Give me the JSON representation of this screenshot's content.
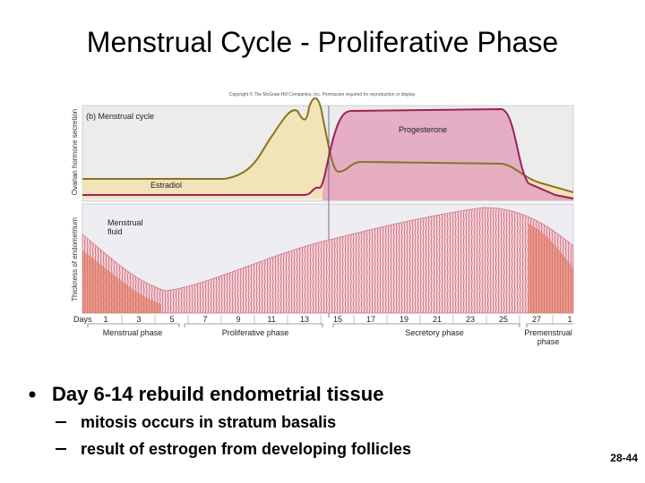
{
  "title": "Menstrual Cycle - Proliferative Phase",
  "figure": {
    "copyright": "Copyright © The McGraw-Hill Companies, Inc. Permission required for reproduction or display.",
    "panel_label": "(b) Menstrual cycle",
    "upper_axis_label": "Ovarian hormone secretion",
    "lower_axis_label": "Thickness of endometrium",
    "progesterone": "Progesterone",
    "estradiol": "Estradiol",
    "menstrual_fluid": [
      "Menstrual",
      "fluid"
    ],
    "days_label": "Days",
    "days": [
      "1",
      "3",
      "5",
      "7",
      "9",
      "11",
      "13",
      "15",
      "17",
      "19",
      "21",
      "23",
      "25",
      "27",
      "1"
    ],
    "phases": {
      "menstrual": "Menstrual phase",
      "proliferative": "Proliferative phase",
      "secretory": "Secretory phase",
      "premenstrual": [
        "Premenstrual",
        "phase"
      ]
    }
  },
  "bullets": {
    "main": "Day 6-14 rebuild endometrial tissue",
    "sub": [
      "mitosis occurs in stratum basalis",
      "result of estrogen from developing follicles"
    ]
  },
  "slide_number": "28-44"
}
